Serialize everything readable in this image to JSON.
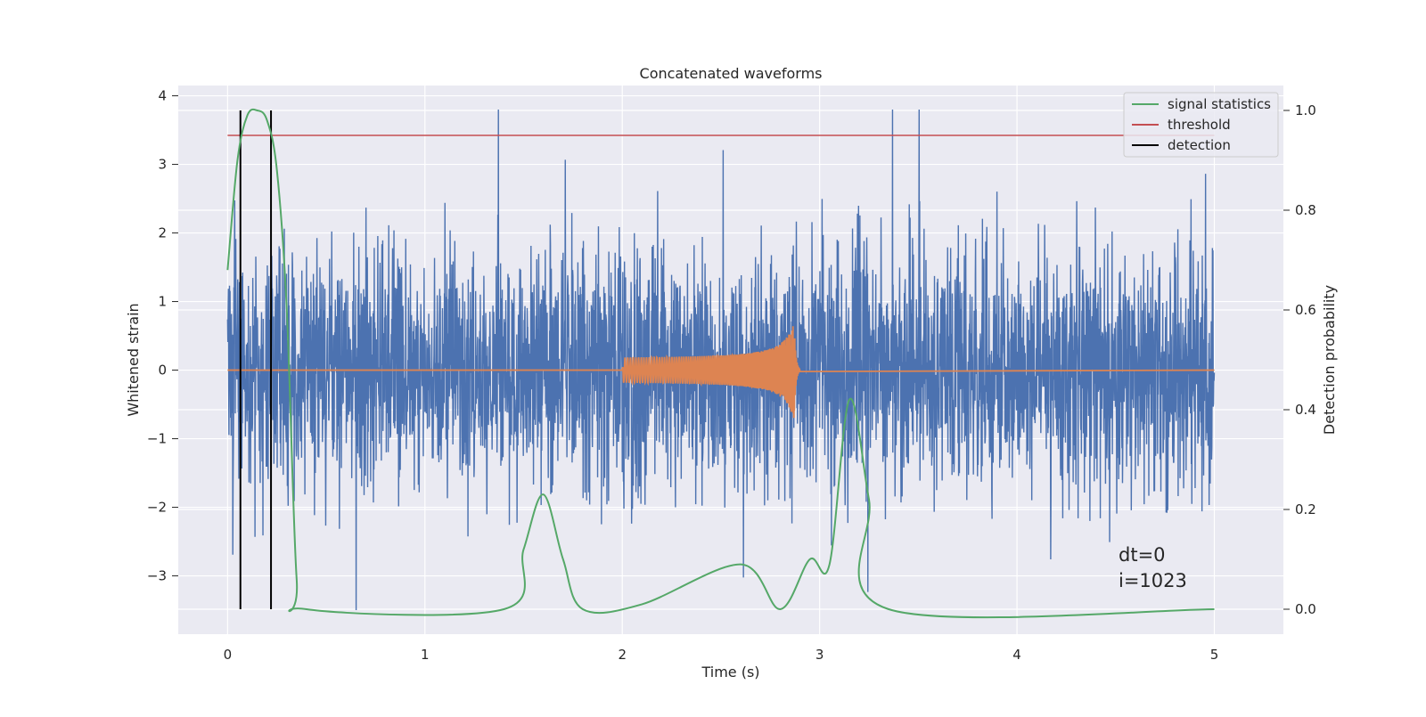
{
  "chart_data": {
    "type": "line",
    "title": "Concatenated waveforms",
    "xlabel": "Time (s)",
    "ylabel": "Whitened strain",
    "y2label": "Detection probability",
    "xlim": [
      -0.25,
      5.35
    ],
    "ylim": [
      -3.85,
      4.15
    ],
    "y2lim": [
      -0.05,
      1.05
    ],
    "xticks": [
      "0",
      "1",
      "2",
      "3",
      "4",
      "5"
    ],
    "yticks": [
      "−3",
      "−2",
      "−1",
      "0",
      "1",
      "2",
      "3",
      "4"
    ],
    "y2ticks": [
      "0.0",
      "0.2",
      "0.4",
      "0.6",
      "0.8",
      "1.0"
    ],
    "grid": true,
    "legend_position": "top-right",
    "legend": [
      "signal statistics",
      "threshold",
      "detection"
    ],
    "annotations": [
      "dt=0",
      "i=1023"
    ],
    "colors": {
      "strain": "#4c72b0",
      "template": "#dd8452",
      "signal_statistics": "#55a868",
      "threshold": "#c44e52",
      "detection": "#000000",
      "background": "#eaeaf2",
      "grid": "#ffffff"
    },
    "series": [
      {
        "name": "strain",
        "axis": "left",
        "description_points": "dense noise, mostly within ±2.5, extremes near 3.8 and -3.5",
        "x_range": [
          0,
          5
        ]
      },
      {
        "name": "template",
        "axis": "left",
        "x_range": [
          2.0,
          2.9
        ],
        "peak_time": 2.87,
        "peak_amplitude": 0.75
      },
      {
        "name": "signal statistics",
        "axis": "right",
        "x": [
          0.0,
          0.05,
          0.1,
          0.15,
          0.2,
          0.25,
          0.3,
          0.35,
          0.4,
          1.4,
          1.5,
          1.6,
          1.7,
          1.8,
          2.1,
          2.6,
          2.8,
          2.95,
          3.05,
          3.15,
          3.25,
          3.35,
          5.0
        ],
        "values": [
          0.68,
          0.9,
          0.99,
          1.0,
          0.98,
          0.88,
          0.6,
          0.06,
          0.0,
          0.0,
          0.12,
          0.23,
          0.1,
          0.0,
          0.01,
          0.09,
          0.0,
          0.1,
          0.09,
          0.42,
          0.22,
          0.0,
          0.0
        ]
      },
      {
        "name": "threshold",
        "axis": "right",
        "x": [
          0,
          5
        ],
        "values": [
          0.95,
          0.95
        ]
      },
      {
        "name": "detection",
        "axis": "right",
        "x": [
          0.065,
          0.22
        ],
        "values": [
          1.0,
          1.0
        ]
      }
    ]
  }
}
